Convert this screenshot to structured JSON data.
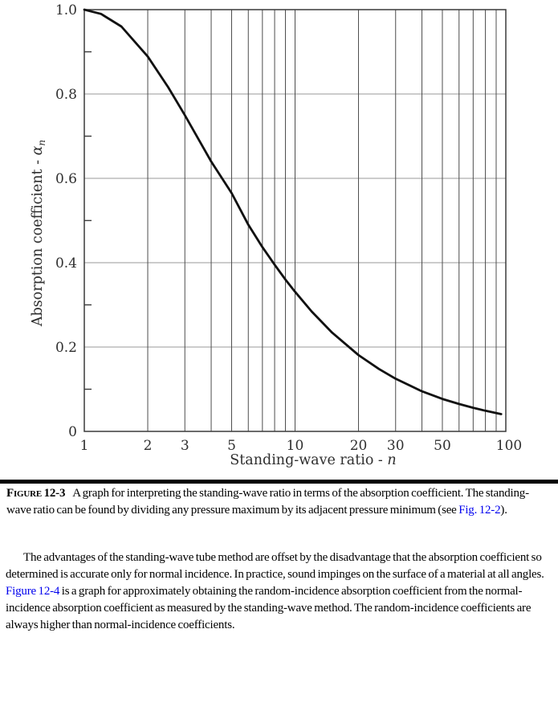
{
  "figure": {
    "caption_label": "Figure 12-3",
    "caption_text_1": "A graph for interpreting the standing-wave ratio in terms of the absorption coefficient. The standing-wave ratio can be found by dividing any pressure maximum by its adjacent pressure minimum (see ",
    "caption_link": "Fig. 12-2",
    "caption_text_2": ")."
  },
  "body": {
    "para_1": "The advantages of the standing-wave tube method are offset by the disadvantage that the absorption coefficient so determined is accurate only for normal incidence. In practice, sound impinges on the surface of a material at all angles. ",
    "para_link": "Figure 12-4",
    "para_2": " is a graph for approximately obtaining the random-incidence absorption coefficient from the normal-incidence absorption coefficient as measured by the standing-wave method. The random-incidence coefficients are always higher than normal-incidence coefficients."
  },
  "links": {
    "color": "#0000ee"
  },
  "chart_data": {
    "type": "line",
    "title": "",
    "xlabel": "Standing-wave ratio - n",
    "xlabel_main": "Standing-wave ratio - ",
    "xlabel_var": "n",
    "ylabel": "Absorption coefficient - αn",
    "ylabel_main": "Absorption coefficient - ",
    "ylabel_sym": "α",
    "ylabel_sub": "n",
    "x_scale": "log",
    "xlim": [
      1,
      100
    ],
    "ylim": [
      0,
      1.0
    ],
    "grid": "on",
    "legend": "none",
    "x_ticks": [
      {
        "label": "1",
        "value": 1
      },
      {
        "label": "2",
        "value": 2
      },
      {
        "label": "3",
        "value": 3
      },
      {
        "label": "5",
        "value": 5
      },
      {
        "label": "10",
        "value": 10
      },
      {
        "label": "20",
        "value": 20
      },
      {
        "label": "30",
        "value": 30
      },
      {
        "label": "50",
        "value": 50
      },
      {
        "label": "100",
        "value": 100
      }
    ],
    "y_ticks": [
      {
        "label": "1.0",
        "value": 1.0
      },
      {
        "label": "0.8",
        "value": 0.8
      },
      {
        "label": "0.6",
        "value": 0.6
      },
      {
        "label": "0.4",
        "value": 0.4
      },
      {
        "label": "0.2",
        "value": 0.2
      },
      {
        "label": "0",
        "value": 0
      }
    ],
    "x_gridlines": [
      2,
      3,
      4,
      5,
      6,
      7,
      8,
      9,
      10,
      20,
      30,
      40,
      50,
      60,
      70,
      80,
      90
    ],
    "y_gridlines": [
      0.2,
      0.4,
      0.6,
      0.8
    ],
    "y_minor_ticks": [
      0.1,
      0.3,
      0.5,
      0.7,
      0.9
    ],
    "series": [
      {
        "name": "normal-incidence absorption coefficient vs standing-wave ratio",
        "x": [
          1,
          1.2,
          1.5,
          2,
          2.5,
          3,
          4,
          5,
          6,
          7,
          8,
          9,
          10,
          12,
          15,
          20,
          25,
          30,
          40,
          50,
          60,
          70,
          80,
          95
        ],
        "y": [
          1.0,
          0.99,
          0.96,
          0.889,
          0.816,
          0.75,
          0.64,
          0.565,
          0.49,
          0.437,
          0.395,
          0.36,
          0.331,
          0.284,
          0.234,
          0.181,
          0.148,
          0.125,
          0.095,
          0.077,
          0.065,
          0.056,
          0.049,
          0.041
        ]
      }
    ],
    "colors": {
      "curve": "#111111",
      "grid_vertical": "#4d4d4d",
      "grid_horizontal": "#999999",
      "axis": "#3a3a3a",
      "tick_label": "#2f2f2f"
    }
  }
}
